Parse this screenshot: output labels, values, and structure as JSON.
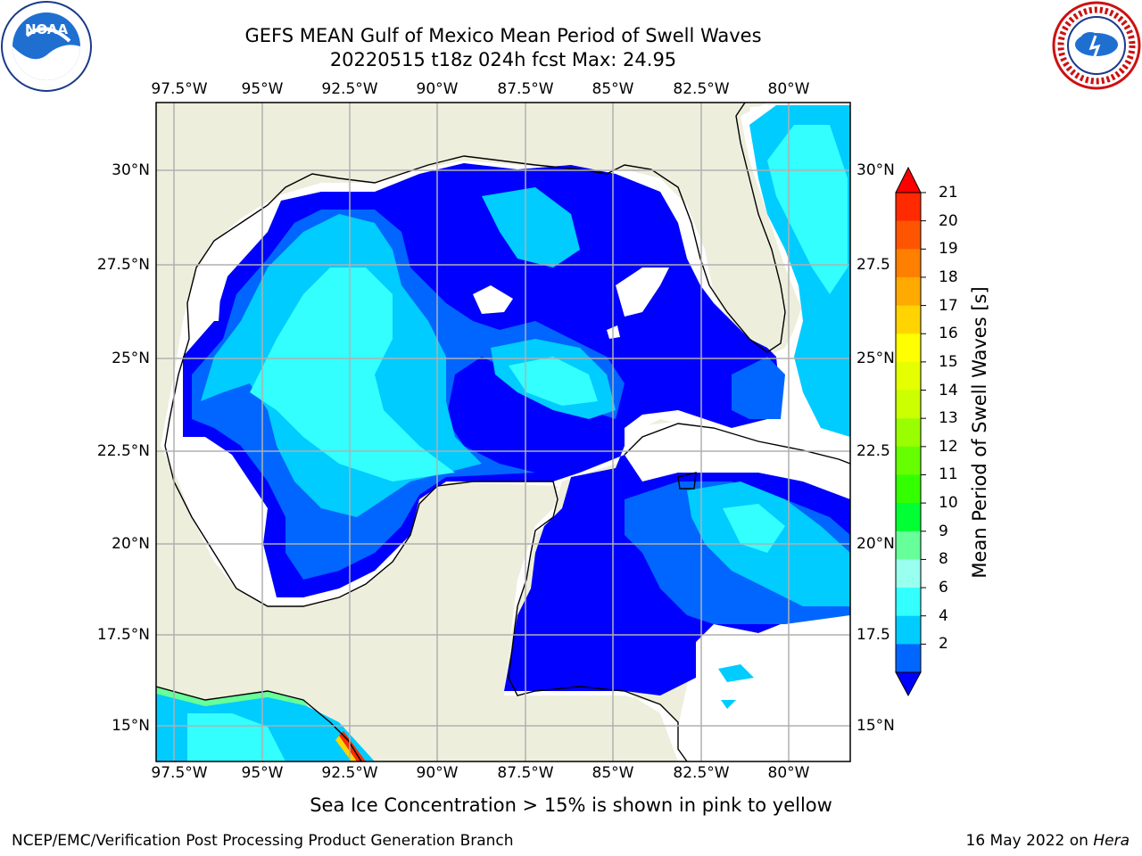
{
  "header": {
    "title_line1": "GEFS MEAN Gulf of Mexico Mean Period of Swell Waves",
    "title_line2": "20220515 t18z 024h fcst   Max: 24.95"
  },
  "logos": {
    "noaa_text": "NOAA",
    "nws_text": "NATIONAL WEATHER SERVICE"
  },
  "axes": {
    "lon_ticks": [
      "97.5°W",
      "95°W",
      "92.5°W",
      "90°W",
      "87.5°W",
      "85°W",
      "82.5°W",
      "80°W"
    ],
    "lat_ticks": [
      "30°N",
      "27.5°N",
      "25°N",
      "22.5°N",
      "20°N",
      "17.5°N",
      "15°N"
    ],
    "lat_ticks_right": [
      "30°N",
      "27.5",
      "25°N",
      "22.5",
      "20°N",
      "17.5",
      "15°N"
    ]
  },
  "colorbar": {
    "title": "Mean Period of Swell Waves [s]",
    "labels": [
      "21",
      "20",
      "19",
      "18",
      "17",
      "16",
      "15",
      "14",
      "13",
      "12",
      "11",
      "10",
      "9",
      "8",
      "6",
      "4",
      "2"
    ],
    "colors": [
      "#ff2a00",
      "#ff5500",
      "#ff7f00",
      "#ffaa00",
      "#ffd400",
      "#ffff00",
      "#e5ff00",
      "#ccff00",
      "#99ff00",
      "#66ff00",
      "#33ff00",
      "#00ff33",
      "#66ff99",
      "#99ffee",
      "#33ffff",
      "#00ccff",
      "#0066ff"
    ],
    "under_color": "#0000ff",
    "over_color": "#ff0000"
  },
  "map": {
    "land_color": "#eeeedd",
    "ocean_blank_color": "#ffffff",
    "grid_color": "#b0b0b0",
    "coastline_color": "#000000"
  },
  "footer": {
    "note": "Sea Ice Concentration > 15% is shown in pink to yellow",
    "credit": "NCEP/EMC/Verification Post Processing Product Generation Branch",
    "date": "16 May 2022 on ",
    "host": "Hera"
  }
}
